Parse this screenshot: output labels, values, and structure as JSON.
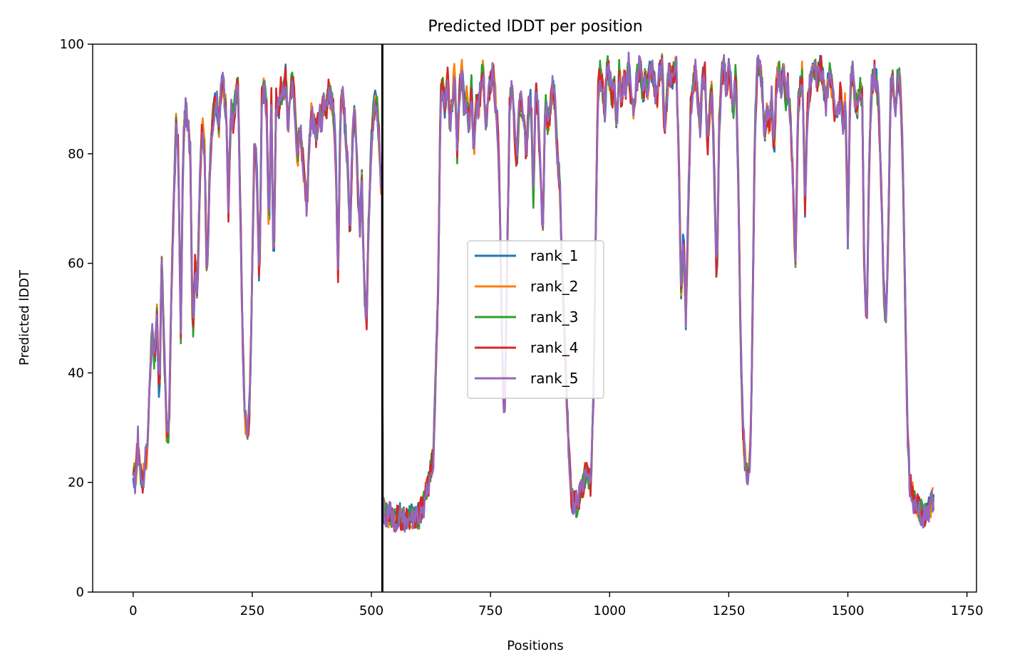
{
  "chart_data": {
    "type": "line",
    "title": "Predicted lDDT per position",
    "xlabel": "Positions",
    "ylabel": "Predicted lDDT",
    "xlim": [
      -85,
      1770
    ],
    "ylim": [
      0,
      100
    ],
    "xticks": [
      0,
      250,
      500,
      750,
      1000,
      1250,
      1500,
      1750
    ],
    "yticks": [
      0,
      20,
      40,
      60,
      80,
      100
    ],
    "grid": false,
    "legend_position": "center",
    "vline_x": 523,
    "series": [
      {
        "name": "rank_1",
        "color": "#1f77b4"
      },
      {
        "name": "rank_2",
        "color": "#ff7f0e"
      },
      {
        "name": "rank_3",
        "color": "#2ca02c"
      },
      {
        "name": "rank_4",
        "color": "#d62728"
      },
      {
        "name": "rank_5",
        "color": "#9467bd"
      }
    ],
    "profile": [
      [
        0,
        22
      ],
      [
        5,
        20
      ],
      [
        10,
        28
      ],
      [
        15,
        22
      ],
      [
        20,
        20
      ],
      [
        25,
        24
      ],
      [
        30,
        25
      ],
      [
        35,
        38
      ],
      [
        40,
        48
      ],
      [
        45,
        42
      ],
      [
        50,
        50
      ],
      [
        55,
        35
      ],
      [
        60,
        62
      ],
      [
        65,
        45
      ],
      [
        70,
        30
      ],
      [
        75,
        28
      ],
      [
        80,
        55
      ],
      [
        85,
        70
      ],
      [
        90,
        85
      ],
      [
        95,
        80
      ],
      [
        100,
        47
      ],
      [
        105,
        82
      ],
      [
        110,
        88
      ],
      [
        115,
        86
      ],
      [
        120,
        80
      ],
      [
        125,
        45
      ],
      [
        130,
        60
      ],
      [
        135,
        55
      ],
      [
        140,
        75
      ],
      [
        145,
        85
      ],
      [
        150,
        80
      ],
      [
        155,
        55
      ],
      [
        160,
        75
      ],
      [
        165,
        85
      ],
      [
        170,
        88
      ],
      [
        175,
        90
      ],
      [
        180,
        85
      ],
      [
        185,
        93
      ],
      [
        190,
        92
      ],
      [
        195,
        88
      ],
      [
        200,
        70
      ],
      [
        205,
        88
      ],
      [
        210,
        86
      ],
      [
        215,
        90
      ],
      [
        220,
        92
      ],
      [
        225,
        70
      ],
      [
        230,
        45
      ],
      [
        235,
        32
      ],
      [
        240,
        28
      ],
      [
        245,
        35
      ],
      [
        250,
        60
      ],
      [
        255,
        85
      ],
      [
        260,
        75
      ],
      [
        265,
        55
      ],
      [
        270,
        90
      ],
      [
        275,
        92
      ],
      [
        280,
        88
      ],
      [
        285,
        65
      ],
      [
        290,
        90
      ],
      [
        295,
        58
      ],
      [
        300,
        90
      ],
      [
        305,
        88
      ],
      [
        310,
        92
      ],
      [
        315,
        90
      ],
      [
        320,
        94
      ],
      [
        325,
        85
      ],
      [
        330,
        92
      ],
      [
        335,
        93
      ],
      [
        340,
        88
      ],
      [
        345,
        78
      ],
      [
        350,
        85
      ],
      [
        355,
        80
      ],
      [
        360,
        75
      ],
      [
        365,
        70
      ],
      [
        370,
        82
      ],
      [
        375,
        88
      ],
      [
        380,
        85
      ],
      [
        385,
        83
      ],
      [
        390,
        88
      ],
      [
        395,
        85
      ],
      [
        400,
        90
      ],
      [
        405,
        88
      ],
      [
        410,
        92
      ],
      [
        415,
        90
      ],
      [
        420,
        88
      ],
      [
        425,
        80
      ],
      [
        430,
        58
      ],
      [
        435,
        88
      ],
      [
        440,
        90
      ],
      [
        445,
        85
      ],
      [
        450,
        78
      ],
      [
        455,
        65
      ],
      [
        460,
        82
      ],
      [
        465,
        88
      ],
      [
        470,
        78
      ],
      [
        475,
        65
      ],
      [
        480,
        75
      ],
      [
        485,
        55
      ],
      [
        490,
        50
      ],
      [
        495,
        70
      ],
      [
        500,
        82
      ],
      [
        505,
        88
      ],
      [
        510,
        90
      ],
      [
        515,
        85
      ],
      [
        520,
        75
      ],
      [
        525,
        15
      ],
      [
        530,
        14
      ],
      [
        540,
        14
      ],
      [
        550,
        13
      ],
      [
        560,
        14
      ],
      [
        570,
        13
      ],
      [
        580,
        14
      ],
      [
        590,
        13
      ],
      [
        600,
        14
      ],
      [
        610,
        16
      ],
      [
        620,
        20
      ],
      [
        630,
        25
      ],
      [
        640,
        55
      ],
      [
        645,
        90
      ],
      [
        650,
        92
      ],
      [
        655,
        88
      ],
      [
        660,
        94
      ],
      [
        665,
        85
      ],
      [
        670,
        90
      ],
      [
        675,
        95
      ],
      [
        680,
        80
      ],
      [
        685,
        92
      ],
      [
        690,
        95
      ],
      [
        695,
        88
      ],
      [
        700,
        90
      ],
      [
        705,
        85
      ],
      [
        710,
        92
      ],
      [
        715,
        80
      ],
      [
        720,
        90
      ],
      [
        725,
        88
      ],
      [
        730,
        93
      ],
      [
        735,
        95
      ],
      [
        740,
        85
      ],
      [
        745,
        90
      ],
      [
        750,
        93
      ],
      [
        755,
        95
      ],
      [
        760,
        90
      ],
      [
        765,
        85
      ],
      [
        770,
        70
      ],
      [
        775,
        40
      ],
      [
        780,
        32
      ],
      [
        785,
        60
      ],
      [
        790,
        88
      ],
      [
        795,
        92
      ],
      [
        800,
        85
      ],
      [
        805,
        78
      ],
      [
        810,
        88
      ],
      [
        815,
        90
      ],
      [
        820,
        85
      ],
      [
        825,
        80
      ],
      [
        830,
        88
      ],
      [
        835,
        90
      ],
      [
        840,
        72
      ],
      [
        845,
        92
      ],
      [
        850,
        88
      ],
      [
        855,
        75
      ],
      [
        860,
        65
      ],
      [
        865,
        90
      ],
      [
        870,
        85
      ],
      [
        875,
        88
      ],
      [
        880,
        92
      ],
      [
        885,
        90
      ],
      [
        890,
        80
      ],
      [
        895,
        75
      ],
      [
        900,
        60
      ],
      [
        910,
        35
      ],
      [
        915,
        25
      ],
      [
        920,
        17
      ],
      [
        930,
        16
      ],
      [
        940,
        18
      ],
      [
        950,
        22
      ],
      [
        960,
        20
      ],
      [
        965,
        30
      ],
      [
        970,
        60
      ],
      [
        975,
        90
      ],
      [
        980,
        95
      ],
      [
        985,
        92
      ],
      [
        990,
        88
      ],
      [
        995,
        96
      ],
      [
        1000,
        94
      ],
      [
        1005,
        90
      ],
      [
        1010,
        92
      ],
      [
        1015,
        85
      ],
      [
        1020,
        95
      ],
      [
        1025,
        90
      ],
      [
        1030,
        94
      ],
      [
        1035,
        92
      ],
      [
        1040,
        96
      ],
      [
        1045,
        90
      ],
      [
        1050,
        88
      ],
      [
        1055,
        92
      ],
      [
        1060,
        95
      ],
      [
        1065,
        96
      ],
      [
        1070,
        90
      ],
      [
        1075,
        94
      ],
      [
        1080,
        92
      ],
      [
        1085,
        96
      ],
      [
        1090,
        95
      ],
      [
        1095,
        92
      ],
      [
        1100,
        90
      ],
      [
        1105,
        95
      ],
      [
        1110,
        96
      ],
      [
        1115,
        85
      ],
      [
        1120,
        90
      ],
      [
        1125,
        96
      ],
      [
        1130,
        93
      ],
      [
        1135,
        95
      ],
      [
        1140,
        96
      ],
      [
        1145,
        80
      ],
      [
        1150,
        55
      ],
      [
        1155,
        65
      ],
      [
        1160,
        50
      ],
      [
        1165,
        70
      ],
      [
        1170,
        88
      ],
      [
        1175,
        92
      ],
      [
        1180,
        95
      ],
      [
        1185,
        90
      ],
      [
        1190,
        85
      ],
      [
        1195,
        93
      ],
      [
        1200,
        95
      ],
      [
        1205,
        80
      ],
      [
        1210,
        88
      ],
      [
        1215,
        92
      ],
      [
        1220,
        75
      ],
      [
        1225,
        55
      ],
      [
        1230,
        85
      ],
      [
        1235,
        94
      ],
      [
        1240,
        96
      ],
      [
        1245,
        92
      ],
      [
        1250,
        95
      ],
      [
        1255,
        92
      ],
      [
        1260,
        88
      ],
      [
        1265,
        96
      ],
      [
        1270,
        75
      ],
      [
        1275,
        45
      ],
      [
        1280,
        30
      ],
      [
        1285,
        23
      ],
      [
        1290,
        22
      ],
      [
        1295,
        24
      ],
      [
        1300,
        50
      ],
      [
        1305,
        85
      ],
      [
        1310,
        95
      ],
      [
        1315,
        97
      ],
      [
        1320,
        92
      ],
      [
        1325,
        82
      ],
      [
        1330,
        88
      ],
      [
        1335,
        85
      ],
      [
        1340,
        90
      ],
      [
        1345,
        80
      ],
      [
        1350,
        93
      ],
      [
        1355,
        95
      ],
      [
        1360,
        92
      ],
      [
        1365,
        95
      ],
      [
        1370,
        90
      ],
      [
        1375,
        93
      ],
      [
        1380,
        85
      ],
      [
        1385,
        75
      ],
      [
        1390,
        58
      ],
      [
        1395,
        88
      ],
      [
        1400,
        92
      ],
      [
        1405,
        95
      ],
      [
        1410,
        70
      ],
      [
        1415,
        88
      ],
      [
        1420,
        92
      ],
      [
        1425,
        95
      ],
      [
        1430,
        96
      ],
      [
        1435,
        93
      ],
      [
        1440,
        95
      ],
      [
        1445,
        96
      ],
      [
        1450,
        92
      ],
      [
        1455,
        88
      ],
      [
        1460,
        95
      ],
      [
        1465,
        93
      ],
      [
        1470,
        90
      ],
      [
        1475,
        85
      ],
      [
        1480,
        88
      ],
      [
        1485,
        92
      ],
      [
        1490,
        85
      ],
      [
        1495,
        90
      ],
      [
        1500,
        65
      ],
      [
        1505,
        92
      ],
      [
        1510,
        95
      ],
      [
        1515,
        90
      ],
      [
        1520,
        88
      ],
      [
        1525,
        93
      ],
      [
        1530,
        90
      ],
      [
        1535,
        55
      ],
      [
        1540,
        50
      ],
      [
        1545,
        80
      ],
      [
        1550,
        92
      ],
      [
        1555,
        95
      ],
      [
        1560,
        93
      ],
      [
        1565,
        88
      ],
      [
        1570,
        75
      ],
      [
        1575,
        55
      ],
      [
        1580,
        50
      ],
      [
        1585,
        65
      ],
      [
        1590,
        92
      ],
      [
        1595,
        93
      ],
      [
        1600,
        88
      ],
      [
        1605,
        95
      ],
      [
        1610,
        92
      ],
      [
        1615,
        80
      ],
      [
        1620,
        55
      ],
      [
        1625,
        30
      ],
      [
        1630,
        20
      ],
      [
        1640,
        16
      ],
      [
        1650,
        15
      ],
      [
        1660,
        14
      ],
      [
        1670,
        15
      ],
      [
        1675,
        16
      ],
      [
        1680,
        17
      ]
    ]
  }
}
